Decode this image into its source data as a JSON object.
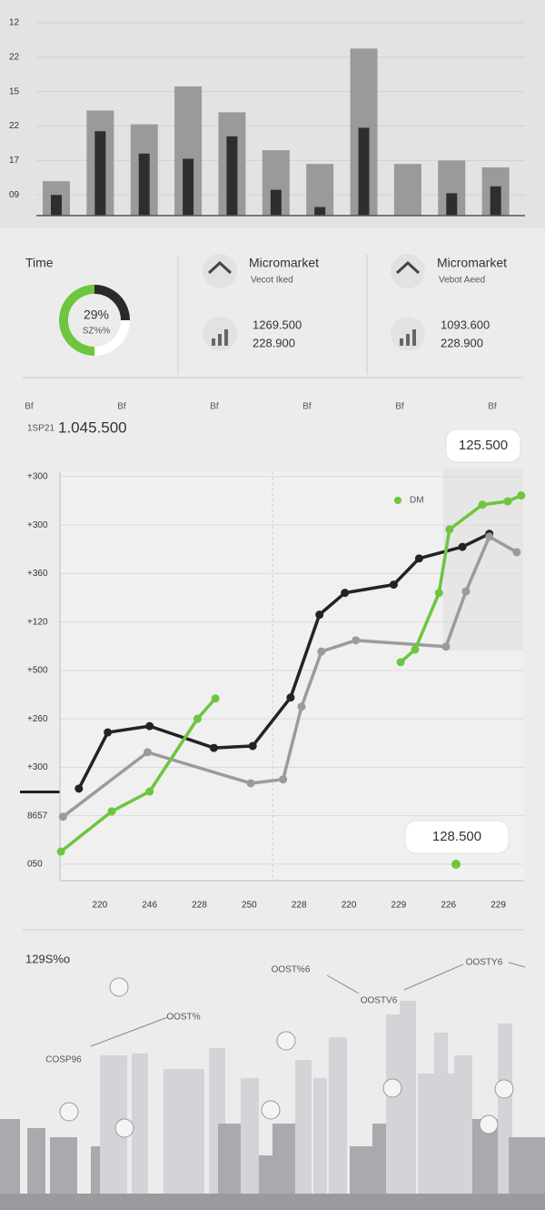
{
  "chart_data": [
    {
      "type": "bar",
      "series": [
        {
          "color": "#9a9a9a",
          "values": [
            1.4,
            3.45,
            3.05,
            4.15,
            3.4,
            2.3,
            1.9,
            5.25,
            1.9,
            2.0,
            1.8
          ]
        },
        {
          "color": "#2e2e2e",
          "values": [
            1.0,
            2.85,
            2.2,
            2.05,
            2.7,
            1.15,
            0.65,
            2.95,
            null,
            1.05,
            1.25
          ]
        }
      ],
      "ylim": [
        0.4,
        6.5
      ],
      "yticks": [
        {
          "value": 1,
          "label": "09"
        },
        {
          "value": 2,
          "label": "17"
        },
        {
          "value": 3,
          "label": "22"
        },
        {
          "value": 4,
          "label": "15"
        },
        {
          "value": 5,
          "label": "22"
        },
        {
          "value": 6,
          "label": "12"
        }
      ],
      "grid": true
    },
    {
      "type": "line",
      "series": [
        {
          "color": "#232323",
          "x": [
            -0.42,
            0.16,
            1.0,
            2.29,
            3.07,
            3.83,
            4.41,
            4.92,
            5.9,
            6.41,
            7.28,
            7.82
          ],
          "values": [
            1.56,
            2.72,
            2.85,
            2.4,
            2.44,
            3.44,
            5.15,
            5.6,
            5.77,
            6.31,
            6.55,
            6.82
          ]
        },
        {
          "color": "#9b9b9b",
          "x": [
            -0.74,
            0.96,
            3.03,
            3.68,
            4.05,
            4.45,
            5.14,
            6.95,
            7.35,
            7.82,
            8.37
          ],
          "values": [
            0.98,
            2.31,
            1.67,
            1.75,
            3.25,
            4.39,
            4.62,
            4.49,
            5.63,
            6.76,
            6.44
          ]
        },
        {
          "name": "DM",
          "color": "#6cc63e",
          "x": [
            -0.78,
            0.24,
            1.0,
            1.96,
            2.32,
            5.32,
            6.04,
            6.33,
            6.81,
            7.02,
            7.68,
            8.19,
            8.46
          ],
          "values": [
            0.26,
            1.09,
            1.5,
            3.0,
            3.42,
            null,
            4.17,
            4.43,
            5.6,
            6.91,
            7.42,
            7.49,
            7.61
          ]
        }
      ],
      "xlim": [
        -0.8,
        8.5
      ],
      "ylim": [
        -0.34,
        8.11
      ],
      "xticks": [
        {
          "value": 0,
          "label": "220"
        },
        {
          "value": 1,
          "label": "246"
        },
        {
          "value": 2,
          "label": "228"
        },
        {
          "value": 3,
          "label": "250"
        },
        {
          "value": 4,
          "label": "228"
        },
        {
          "value": 5,
          "label": "220"
        },
        {
          "value": 6,
          "label": "229"
        },
        {
          "value": 7,
          "label": "226"
        },
        {
          "value": 8,
          "label": "229"
        }
      ],
      "yticks": [
        {
          "value": 0,
          "label": "050"
        },
        {
          "value": 1,
          "label": "8657"
        },
        {
          "value": 2,
          "label": "+300"
        },
        {
          "value": 3,
          "label": "+260"
        },
        {
          "value": 4,
          "label": "+500"
        },
        {
          "value": 5,
          "label": "+120"
        },
        {
          "value": 6,
          "label": "+360"
        },
        {
          "value": 7,
          "label": "+300"
        },
        {
          "value": 8,
          "label": "+300"
        }
      ],
      "grid": true,
      "annotations": [
        "125.500",
        "128.500"
      ]
    }
  ],
  "cards": {
    "time": {
      "title": "Time",
      "value": "29%",
      "sub": "SZ%%"
    },
    "items": [
      {
        "title": "Micromarket",
        "sub": "Vecot Iked",
        "value1": "1269.500",
        "value2": "228.900"
      },
      {
        "title": "Micromarket",
        "sub": "Vebot Aeed",
        "value1": "1093.600",
        "value2": "228.900"
      }
    ]
  },
  "header": {
    "icons": [
      "Bf",
      "Bf",
      "Bf",
      "Bf",
      "Bf",
      "Bf"
    ],
    "label": "1SP21",
    "total": "1.045.500"
  },
  "skyline": {
    "title": "129S%o",
    "labels": [
      "OOSTY6",
      "OOST%6",
      "OOST%",
      "COSP96",
      "OOSTV6"
    ]
  }
}
